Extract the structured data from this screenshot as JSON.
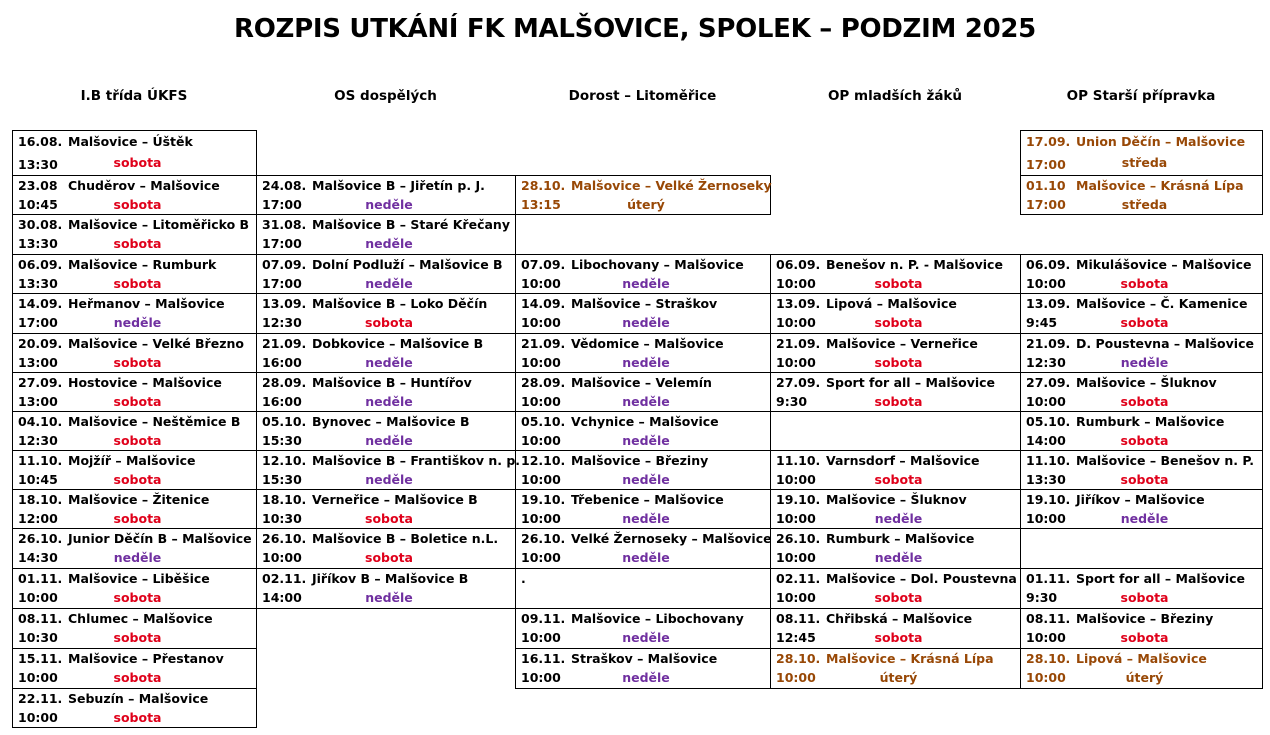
{
  "title": "ROZPIS UTKÁNÍ FK MALŠOVICE, SPOLEK – PODZIM 2025",
  "day_colors": {
    "sobota": "#e0001a",
    "neděle": "#7030a0"
  },
  "columns": [
    {
      "header": "I.B třída ÚKFS",
      "matches": [
        {
          "date": "16.08.",
          "time": "13:30",
          "match": "Malšovice – Úštěk",
          "day": "sobota"
        },
        {
          "date": "23.08",
          "time": "10:45",
          "match": "Chuděrov – Malšovice",
          "day": "sobota"
        },
        {
          "date": "30.08.",
          "time": "13:30",
          "match": "Malšovice – Litoměřicko B",
          "day": "sobota"
        },
        {
          "date": "06.09.",
          "time": "13:30",
          "match": "Malšovice – Rumburk",
          "day": "sobota"
        },
        {
          "date": "14.09.",
          "time": "17:00",
          "match": "Heřmanov – Malšovice",
          "day": "neděle"
        },
        {
          "date": "20.09.",
          "time": "13:00",
          "match": "Malšovice – Velké Březno",
          "day": "sobota"
        },
        {
          "date": "27.09.",
          "time": "13:00",
          "match": "Hostovice – Malšovice",
          "day": "sobota"
        },
        {
          "date": "04.10.",
          "time": "12:30",
          "match": "Malšovice – Neštěmice B",
          "day": "sobota"
        },
        {
          "date": "11.10.",
          "time": "10:45",
          "match": "Mojžíř – Malšovice",
          "day": "sobota"
        },
        {
          "date": "18.10.",
          "time": "12:00",
          "match": "Malšovice – Žitenice",
          "day": "sobota"
        },
        {
          "date": "26.10.",
          "time": "14:30",
          "match": "Junior Děčín B – Malšovice",
          "day": "neděle"
        },
        {
          "date": "01.11.",
          "time": "10:00",
          "match": "Malšovice – Liběšice",
          "day": "sobota"
        },
        {
          "date": "08.11.",
          "time": "10:30",
          "match": "Chlumec – Malšovice",
          "day": "sobota"
        },
        {
          "date": "15.11.",
          "time": "10:00",
          "match": "Malšovice – Přestanov",
          "day": "sobota"
        },
        {
          "date": "22.11.",
          "time": "10:00",
          "match": "Sebuzín – Malšovice",
          "day": "sobota"
        }
      ]
    },
    {
      "header": "OS dospělých",
      "matches": [
        null,
        {
          "date": "24.08.",
          "time": "17:00",
          "match": "Malšovice B – Jiřetín p. J.",
          "day": "neděle"
        },
        {
          "date": "31.08.",
          "time": "17:00",
          "match": "Malšovice B – Staré Křečany",
          "day": "neděle"
        },
        {
          "date": "07.09.",
          "time": "17:00",
          "match": "Dolní Podluží – Malšovice B",
          "day": "neděle"
        },
        {
          "date": "13.09.",
          "time": "12:30",
          "match": "Malšovice B – Loko Děčín",
          "day": "sobota"
        },
        {
          "date": "21.09.",
          "time": "16:00",
          "match": "Dobkovice – Malšovice B",
          "day": "neděle"
        },
        {
          "date": "28.09.",
          "time": "16:00",
          "match": "Malšovice B – Huntířov",
          "day": "neděle"
        },
        {
          "date": "05.10.",
          "time": "15:30",
          "match": "Bynovec – Malšovice B",
          "day": "neděle"
        },
        {
          "date": "12.10.",
          "time": "15:30",
          "match": "Malšovice B – Františkov n. p.",
          "day": "neděle"
        },
        {
          "date": "18.10.",
          "time": "10:30",
          "match": "Verneřice – Malšovice B",
          "day": "sobota"
        },
        {
          "date": "26.10.",
          "time": "10:00",
          "match": "Malšovice B – Boletice n.L.",
          "day": "sobota"
        },
        {
          "date": "02.11.",
          "time": "14:00",
          "match": "Jiříkov B – Malšovice B",
          "day": "neděle"
        },
        null,
        null,
        null
      ]
    },
    {
      "header": "Dorost – Litoměřice",
      "matches": [
        null,
        {
          "date": "28.10.",
          "time": "13:15",
          "match": "Malšovice – Velké Žernoseky",
          "day": "úterý",
          "color": "#984806"
        },
        null,
        {
          "date": "07.09.",
          "time": "10:00",
          "match": "Libochovany – Malšovice",
          "day": "neděle"
        },
        {
          "date": "14.09.",
          "time": "10:00",
          "match": "Malšovice – Straškov",
          "day": "neděle"
        },
        {
          "date": "21.09.",
          "time": "10:00",
          "match": "Vědomice – Malšovice",
          "day": "neděle"
        },
        {
          "date": "28.09.",
          "time": "10:00",
          "match": "Malšovice – Velemín",
          "day": "neděle"
        },
        {
          "date": "05.10.",
          "time": "10:00",
          "match": "Vchynice – Malšovice",
          "day": "neděle"
        },
        {
          "date": "12.10.",
          "time": "10:00",
          "match": "Malšovice – Březiny",
          "day": "neděle"
        },
        {
          "date": "19.10.",
          "time": "10:00",
          "match": "Třebenice – Malšovice",
          "day": "neděle"
        },
        {
          "date": "26.10.",
          "time": "10:00",
          "match": "Velké Žernoseky – Malšovice",
          "day": "neděle"
        },
        {
          "date": "."
        },
        {
          "date": "09.11.",
          "time": "10:00",
          "match": "Malšovice – Libochovany",
          "day": "neděle"
        },
        {
          "date": "16.11.",
          "time": "10:00",
          "match": "Straškov – Malšovice",
          "day": "neděle"
        },
        null
      ]
    },
    {
      "header": "OP mladších žáků",
      "matches": [
        null,
        null,
        null,
        {
          "date": "06.09.",
          "time": "10:00",
          "match": "Benešov n. P. - Malšovice",
          "day": "sobota"
        },
        {
          "date": "13.09.",
          "time": "10:00",
          "match": "Lipová – Malšovice",
          "day": "sobota"
        },
        {
          "date": "21.09.",
          "time": "10:00",
          "match": "Malšovice – Verneřice",
          "day": "sobota"
        },
        {
          "date": "27.09.",
          "time": "9:30",
          "match": "Sport for all – Malšovice",
          "day": "sobota"
        },
        {},
        {
          "date": "11.10.",
          "time": "10:00",
          "match": "Varnsdorf – Malšovice",
          "day": "sobota"
        },
        {
          "date": "19.10.",
          "time": "10:00",
          "match": "Malšovice – Šluknov",
          "day": "neděle"
        },
        {
          "date": "26.10.",
          "time": "10:00",
          "match": "Rumburk – Malšovice",
          "day": "neděle"
        },
        {
          "date": "02.11.",
          "time": "10:00",
          "match": "Malšovice – Dol. Poustevna",
          "day": "sobota"
        },
        {
          "date": "08.11.",
          "time": "12:45",
          "match": "Chřibská – Malšovice",
          "day": "sobota"
        },
        {
          "date": "28.10.",
          "time": "10:00",
          "match": "Malšovice – Krásná Lípa",
          "day": "úterý",
          "color": "#984806"
        },
        null
      ]
    },
    {
      "header": "OP Starší přípravka",
      "matches": [
        {
          "date": "17.09.",
          "time": "17:00",
          "match": "Union Děčín – Malšovice",
          "day": "středa",
          "color": "#984806"
        },
        {
          "date": "01.10",
          "time": "17:00",
          "match": "Malšovice – Krásná Lípa",
          "day": "středa",
          "color": "#984806"
        },
        null,
        {
          "date": "06.09.",
          "time": "10:00",
          "match": "Mikulášovice – Malšovice",
          "day": "sobota"
        },
        {
          "date": "13.09.",
          "time": "9:45",
          "match": "Malšovice – Č. Kamenice",
          "day": "sobota"
        },
        {
          "date": "21.09.",
          "time": "12:30",
          "match": "D. Poustevna – Malšovice",
          "day": "neděle"
        },
        {
          "date": "27.09.",
          "time": "10:00",
          "match": "Malšovice – Šluknov",
          "day": "sobota"
        },
        {
          "date": "05.10.",
          "time": "14:00",
          "match": "Rumburk – Malšovice",
          "day": "sobota"
        },
        {
          "date": "11.10.",
          "time": "13:30",
          "match": "Malšovice – Benešov n. P.",
          "day": "sobota"
        },
        {
          "date": "19.10.",
          "time": "10:00",
          "match": "Jiříkov – Malšovice",
          "day": "neděle"
        },
        {},
        {
          "date": "01.11.",
          "time": "9:30",
          "match": "Sport for all – Malšovice",
          "day": "sobota"
        },
        {
          "date": "08.11.",
          "time": "10:00",
          "match": "Malšovice – Březiny",
          "day": "sobota"
        },
        {
          "date": "28.10.",
          "time": "10:00",
          "match": "Lipová – Malšovice",
          "day": "úterý",
          "color": "#984806"
        },
        null
      ]
    }
  ]
}
